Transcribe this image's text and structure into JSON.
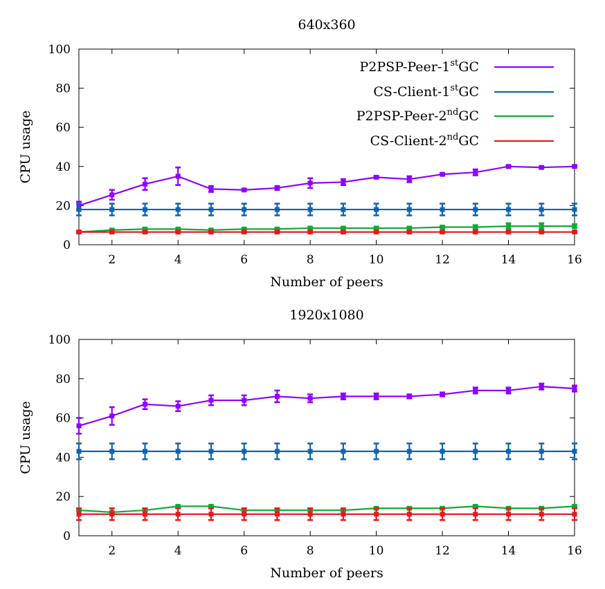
{
  "chart_data": [
    {
      "type": "line",
      "title": "640x360",
      "xlabel": "Number of peers",
      "ylabel": "CPU usage",
      "xlim": [
        1,
        16
      ],
      "ylim": [
        0,
        100
      ],
      "xticks": [
        2,
        4,
        6,
        8,
        10,
        12,
        14,
        16
      ],
      "yticks": [
        0,
        20,
        40,
        60,
        80,
        100
      ],
      "grid": false,
      "legend": "top-right",
      "x": [
        1,
        2,
        3,
        4,
        5,
        6,
        7,
        8,
        9,
        10,
        11,
        12,
        13,
        14,
        15,
        16
      ],
      "series": [
        {
          "name": "P2PSP-Peer-1stGC",
          "legend_base": "P2PSP-Peer-1",
          "legend_sup": "st",
          "legend_tail": "GC",
          "color": "#8f00ff",
          "values": [
            20,
            25.5,
            31,
            35,
            28.5,
            28,
            29,
            31.5,
            32,
            34.5,
            33.5,
            36,
            37,
            40,
            39.5,
            40
          ],
          "errors": [
            2,
            2.5,
            3,
            4.5,
            1.5,
            0.5,
            1,
            2.5,
            1.5,
            0.5,
            1.5,
            0.5,
            1.5,
            0.5,
            0.5,
            0.5
          ]
        },
        {
          "name": "CS-Client-1stGC",
          "legend_base": "CS-Client-1",
          "legend_sup": "st",
          "legend_tail": "GC",
          "color": "#0f64b4",
          "values": [
            18,
            18,
            18,
            18,
            18,
            18,
            18,
            18,
            18,
            18,
            18,
            18,
            18,
            18,
            18,
            18
          ],
          "errors": [
            3,
            3,
            3,
            3,
            3,
            3,
            3,
            3,
            3,
            3,
            3,
            3,
            3,
            3,
            3,
            3
          ]
        },
        {
          "name": "P2PSP-Peer-2ndGC",
          "legend_base": "P2PSP-Peer-2",
          "legend_sup": "nd",
          "legend_tail": "GC",
          "color": "#11aa33",
          "values": [
            6.5,
            7.5,
            8,
            8,
            7.5,
            8,
            8,
            8.5,
            8.5,
            8.5,
            8.5,
            9,
            9,
            9.5,
            9.5,
            9.5
          ],
          "errors": [
            0.5,
            0.5,
            0.5,
            0.5,
            0.5,
            0.5,
            0.5,
            0.5,
            0.5,
            0.5,
            0.5,
            0.5,
            1,
            1.5,
            1.5,
            1
          ]
        },
        {
          "name": "CS-Client-2ndGC",
          "legend_base": "CS-Client-2",
          "legend_sup": "nd",
          "legend_tail": "GC",
          "color": "#e8191e",
          "values": [
            6.5,
            6.5,
            6.5,
            6.5,
            6.5,
            6.5,
            6.5,
            6.5,
            6.5,
            6.5,
            6.5,
            6.5,
            6.5,
            6.5,
            6.5,
            6.5
          ],
          "errors": [
            0.5,
            0.5,
            0.5,
            0.5,
            0.5,
            0.5,
            0.5,
            0.5,
            0.5,
            0.5,
            0.5,
            0.5,
            0.5,
            0.5,
            0.5,
            0.5
          ]
        }
      ]
    },
    {
      "type": "line",
      "title": "1920x1080",
      "xlabel": "Number of peers",
      "ylabel": "CPU usage",
      "xlim": [
        1,
        16
      ],
      "ylim": [
        0,
        100
      ],
      "xticks": [
        2,
        4,
        6,
        8,
        10,
        12,
        14,
        16
      ],
      "yticks": [
        0,
        20,
        40,
        60,
        80,
        100
      ],
      "grid": false,
      "legend": "none",
      "x": [
        1,
        2,
        3,
        4,
        5,
        6,
        7,
        8,
        9,
        10,
        11,
        12,
        13,
        14,
        15,
        16
      ],
      "series": [
        {
          "color": "#8f00ff",
          "values": [
            56,
            61,
            67,
            66,
            69,
            69,
            71,
            70,
            71,
            71,
            71,
            72,
            74,
            74,
            76,
            75
          ],
          "errors": [
            4,
            4.5,
            2.5,
            2.5,
            2.5,
            2.5,
            3,
            2,
            1.5,
            1.5,
            1,
            1,
            1.5,
            1.5,
            1.5,
            1.5
          ]
        },
        {
          "color": "#0f64b4",
          "values": [
            43,
            43,
            43,
            43,
            43,
            43,
            43,
            43,
            43,
            43,
            43,
            43,
            43,
            43,
            43,
            43
          ],
          "errors": [
            4,
            4,
            4,
            4,
            4,
            4,
            4,
            4,
            4,
            4,
            4,
            4,
            4,
            4,
            4,
            4
          ]
        },
        {
          "color": "#11aa33",
          "values": [
            13,
            12,
            13,
            15,
            15,
            13,
            13,
            13,
            13,
            14,
            14,
            14,
            15,
            14,
            14,
            15
          ],
          "errors": [
            0.5,
            0.5,
            0.5,
            0.5,
            0.5,
            0.5,
            0.5,
            0.5,
            0.5,
            0.5,
            0.5,
            0.5,
            0.5,
            0.5,
            0.5,
            0.5
          ]
        },
        {
          "color": "#e8191e",
          "values": [
            11,
            11,
            11,
            11,
            11,
            11,
            11,
            11,
            11,
            11,
            11,
            11,
            11,
            11,
            11,
            11
          ],
          "errors": [
            3,
            3,
            3,
            3,
            3,
            3,
            3,
            3,
            3,
            3,
            3,
            3,
            3,
            3,
            3,
            3
          ]
        }
      ]
    }
  ]
}
